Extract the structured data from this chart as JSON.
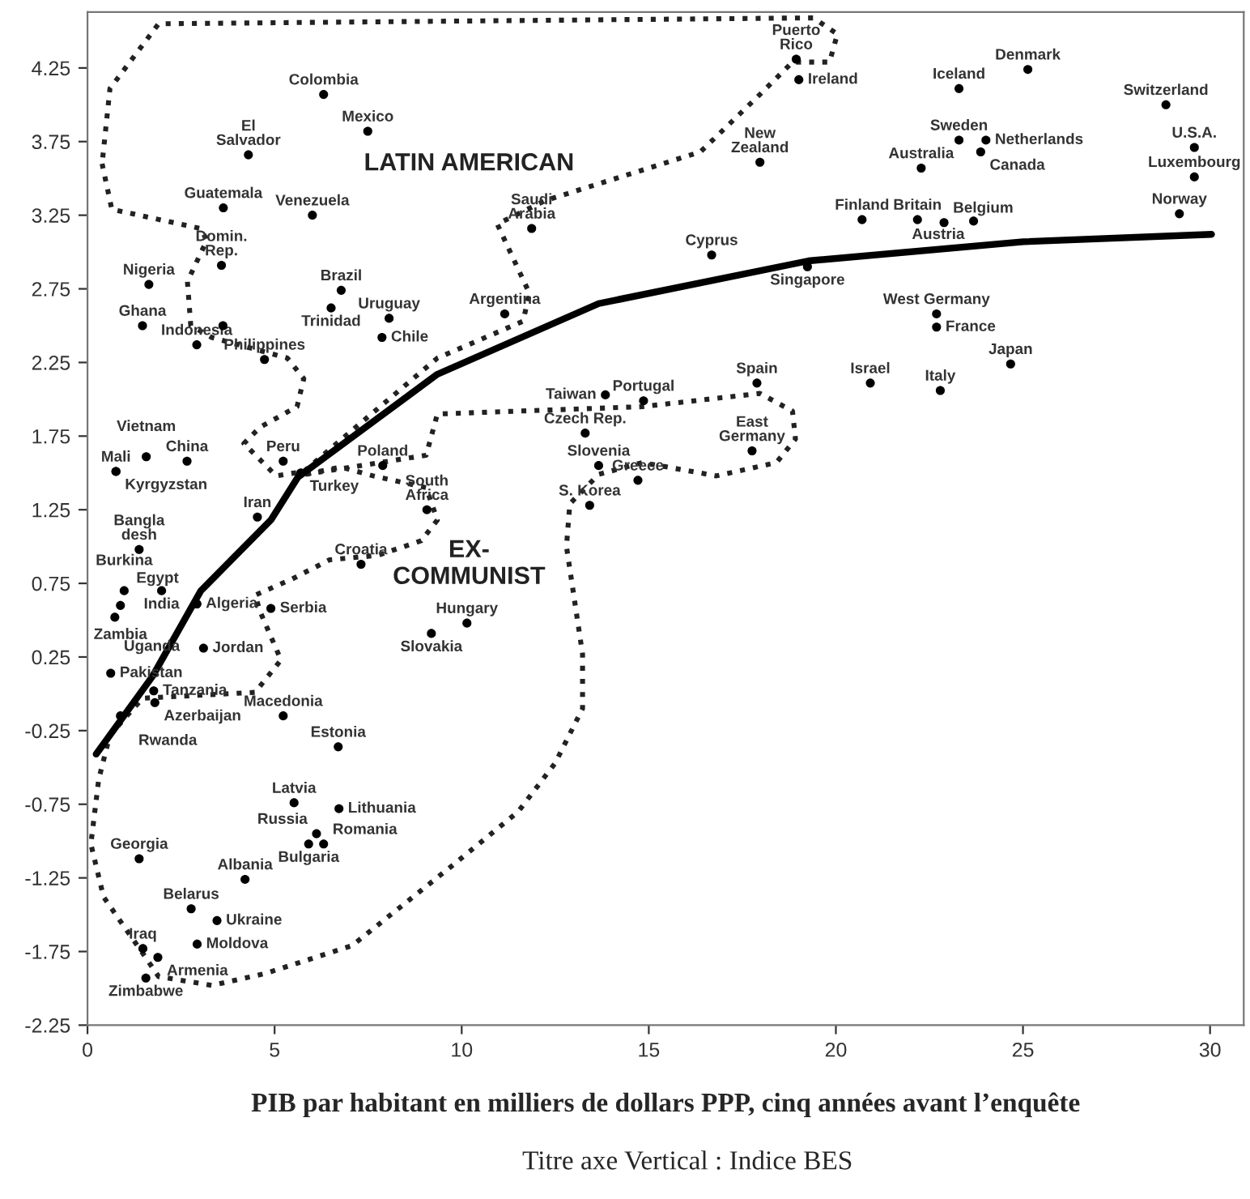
{
  "chart_data": {
    "type": "scatter",
    "xlabel": "PIB par habitant en milliers de dollars PPP, cinq années avant l’enquête",
    "annotations": [
      "LATIN AMERICAN",
      "EX-\nCOMMUNIST",
      "Titre axe Vertical : Indice BES"
    ],
    "xlim": [
      0,
      30.9
    ],
    "ylim": [
      -2.25,
      4.63
    ],
    "xticks": [
      0,
      5,
      10,
      15,
      20,
      25,
      30
    ],
    "yticks": [
      -2.25,
      -1.75,
      -1.25,
      -0.75,
      -0.25,
      0.25,
      0.75,
      1.25,
      1.75,
      2.25,
      2.75,
      3.25,
      3.75,
      4.25
    ],
    "grid": false,
    "legend": false,
    "series": [
      {
        "type": "line",
        "color": "#000000",
        "line_style": "solid",
        "marker": "none",
        "x": [
          0.23,
          1.74,
          3.03,
          4.9,
          5.62,
          9.35,
          13.66,
          19.27,
          25.01,
          30.04
        ],
        "values": [
          -0.41,
          0.12,
          0.7,
          1.18,
          1.47,
          2.17,
          2.65,
          2.94,
          3.07,
          3.12
        ]
      },
      {
        "color": "#000000",
        "marker": "circle",
        "x": [
          6.31,
          7.49,
          4.3,
          3.63,
          6.01,
          3.58,
          3.62,
          6.78,
          1.64,
          6.51,
          1.47,
          2.92,
          4.73,
          8.06,
          7.87,
          11.15,
          1.57,
          0.76,
          0.76,
          2.66,
          5.23,
          5.7,
          4.54,
          7.89,
          9.07,
          1.38,
          0.98,
          1.98,
          2.92,
          2.92,
          0.88,
          0.73,
          3.1,
          0.62,
          1.77,
          1.8,
          0.88,
          4.9,
          7.31,
          5.23,
          10.14,
          9.19,
          6.7,
          5.52,
          6.72,
          6.12,
          5.91,
          6.31,
          1.38,
          4.21,
          2.77,
          3.46,
          2.93,
          1.48,
          1.88,
          1.56,
          13.84,
          14.86,
          17.89,
          13.3,
          17.76,
          13.66,
          14.71,
          13.42,
          18.94,
          19.01,
          17.97,
          11.87,
          16.68,
          19.24,
          23.29,
          25.13,
          28.82,
          23.29,
          24.01,
          23.87,
          29.58,
          22.28,
          29.58,
          29.18,
          20.7,
          22.18,
          22.89,
          23.68,
          22.69,
          22.69,
          24.67,
          20.92,
          22.79
        ],
        "values": [
          4.07,
          3.82,
          3.66,
          3.3,
          3.25,
          2.91,
          2.5,
          2.74,
          2.78,
          2.62,
          2.5,
          2.37,
          2.27,
          2.55,
          2.42,
          2.58,
          1.61,
          1.51,
          1.51,
          1.58,
          1.58,
          1.5,
          1.2,
          1.55,
          1.25,
          0.98,
          0.7,
          0.7,
          0.61,
          0.61,
          0.6,
          0.52,
          0.31,
          0.14,
          0.02,
          -0.06,
          -0.15,
          0.58,
          0.88,
          -0.15,
          0.48,
          0.41,
          -0.36,
          -0.74,
          -0.78,
          -0.95,
          -1.02,
          -1.02,
          -1.12,
          -1.26,
          -1.46,
          -1.54,
          -1.7,
          -1.73,
          -1.79,
          -1.93,
          2.03,
          1.99,
          2.11,
          1.77,
          1.65,
          1.55,
          1.45,
          1.28,
          4.31,
          4.17,
          3.61,
          3.16,
          2.98,
          2.9,
          4.11,
          4.24,
          4.0,
          3.76,
          3.76,
          3.68,
          3.71,
          3.57,
          3.51,
          3.26,
          3.22,
          3.22,
          3.2,
          3.21,
          2.58,
          2.49,
          2.24,
          2.11,
          2.06
        ],
        "value_labels": [
          "Colombia",
          "Mexico",
          "El\nSalvador",
          "Guatemala",
          "Venezuela",
          "Domin.\nRep.",
          null,
          "Brazil",
          "Nigeria",
          "Trinidad",
          "Ghana",
          "Indonesia",
          "Philippines",
          "Uruguay",
          "Chile",
          "Argentina",
          "Vietnam",
          "Kyrgyzstan",
          "Mali",
          "China",
          "Peru",
          "Turkey",
          "Iran",
          "Poland",
          "South\nAfrica",
          "Bangla\ndesh",
          "Burkina",
          "India",
          "Algeria",
          "Egypt",
          "Zambia",
          "Uganda",
          "Jordan",
          "Pakistan",
          "Tanzania",
          "Azerbaijan",
          "Rwanda",
          "Serbia",
          "Croatia",
          "Macedonia",
          "Hungary",
          "Slovakia",
          "Estonia",
          "Latvia",
          "Lithuania",
          "Russia",
          "Bulgaria",
          "Romania",
          "Georgia",
          "Albania",
          "Belarus",
          "Ukraine",
          "Moldova",
          "Iraq",
          "Armenia",
          "Zimbabwe",
          "Taiwan",
          "Portugal",
          "Spain",
          "Czech Rep.",
          "East\nGermany",
          "Slovenia",
          "Greece",
          "S. Korea",
          "Puerto\nRico",
          "Ireland",
          "New\nZealand",
          "Saudi\nArabia",
          "Cyprus",
          "Singapore",
          "Iceland",
          "Denmark",
          "Switzerland",
          "Sweden",
          "Netherlands",
          "Canada",
          "U.S.A.",
          "Australia",
          "Luxembourg",
          "Norway",
          "Finland",
          "Britain",
          "Belgium",
          "Austria",
          "West Germany",
          "France",
          "Japan",
          "Israel",
          "Italy"
        ]
      }
    ]
  }
}
